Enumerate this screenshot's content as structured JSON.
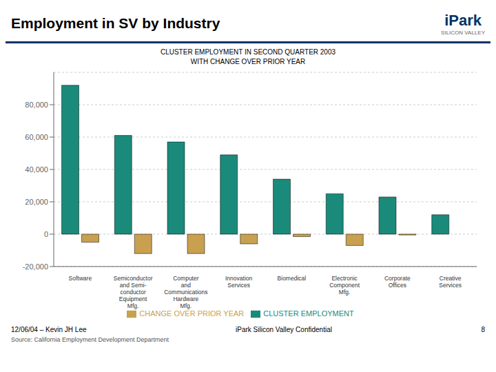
{
  "chart_data": {
    "type": "bar",
    "title": "Employment in SV by Industry",
    "subtitle": "CLUSTER EMPLOYMENT IN SECOND QUARTER 2003\nWITH CHANGE OVER PRIOR YEAR",
    "categories": [
      "Software",
      "Semiconductor\nand Semi-\nconductor\nEquipment\nMfg.",
      "Computer\nand\nCommunications\nHardware\nMfg.",
      "Innovation\nServices",
      "Biomedical",
      "Electronic\nComponent\nMfg.",
      "Corporate\nOffices",
      "Creative\nServices"
    ],
    "series": [
      {
        "name": "CLUSTER EMPLOYMENT",
        "color": "#1a8a7a",
        "values": [
          92000,
          61000,
          57000,
          49000,
          34000,
          25000,
          23000,
          12000
        ]
      },
      {
        "name": "CHANGE OVER PRIOR YEAR",
        "color": "#c8a050",
        "values": [
          -5000,
          -12000,
          -12000,
          -6000,
          -1500,
          -7000,
          -500,
          0
        ]
      }
    ],
    "ylim": [
      -20000,
      100000
    ],
    "yticks": [
      {
        "value": -20000,
        "label": "-20,000"
      },
      0,
      {
        "value": 20000,
        "label": "20,000"
      },
      {
        "value": 40000,
        "label": "40,000"
      },
      {
        "value": 60000,
        "label": "60,000"
      },
      {
        "value": 80000,
        "label": "80,000"
      }
    ],
    "grid": true,
    "legend": "bottom",
    "annotations": [
      "iPark",
      "SILICON VALLEY",
      "12/06/04 – Kevin JH Lee",
      "iPark Silicon Valley Confidential",
      "8",
      "Source: California Employment Development Department"
    ]
  }
}
